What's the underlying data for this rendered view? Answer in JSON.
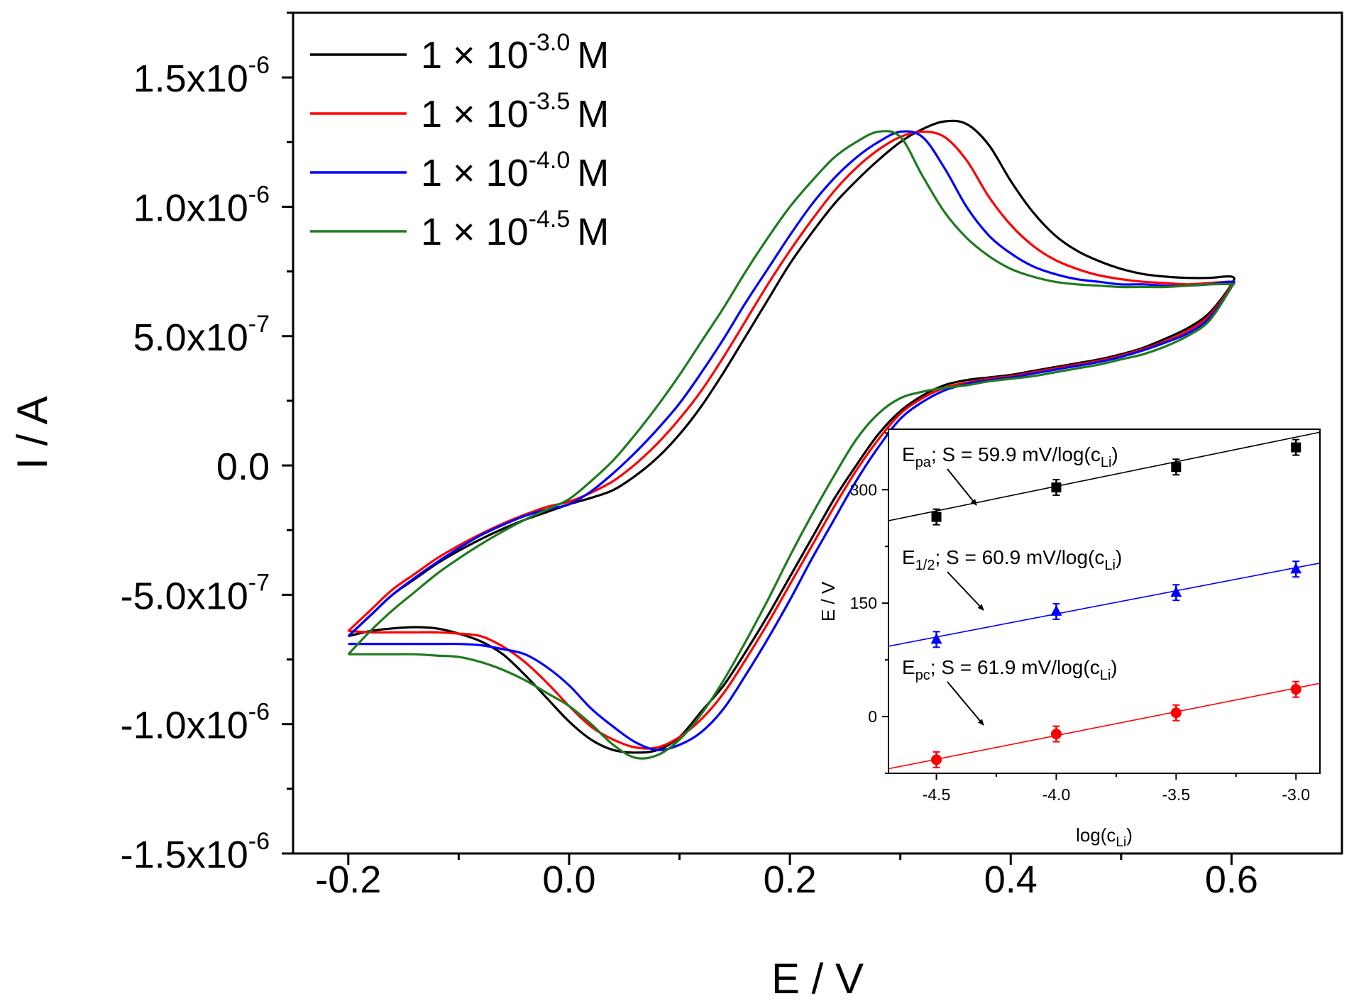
{
  "chart_data": [
    {
      "type": "line",
      "title": "",
      "xlabel": "E / V",
      "ylabel": "I / A",
      "xlim": [
        -0.25,
        0.7
      ],
      "ylim": [
        -1.5e-06,
        1.75e-06
      ],
      "x_ticks": [
        -0.2,
        0.0,
        0.2,
        0.4,
        0.6
      ],
      "x_tick_labels": [
        "-0.2",
        "0.0",
        "0.2",
        "0.4",
        "0.6"
      ],
      "y_ticks": [
        -1.5e-06,
        -1e-06,
        -5e-07,
        0.0,
        5e-07,
        1e-06,
        1.5e-06
      ],
      "y_tick_labels": [
        {
          "mantissa": "-1.5x10",
          "exp": "-6"
        },
        {
          "mantissa": "-1.0x10",
          "exp": "-6"
        },
        {
          "mantissa": "-5.0x10",
          "exp": "-7"
        },
        {
          "mantissa": "0.0",
          "exp": ""
        },
        {
          "mantissa": "5.0x10",
          "exp": "-7"
        },
        {
          "mantissa": "1.0x10",
          "exp": "-6"
        },
        {
          "mantissa": "1.5x10",
          "exp": "-6"
        }
      ],
      "legend_position": "top-left",
      "series": [
        {
          "name": "1 × 10-3.0 M",
          "label_base": "1 × 10",
          "label_exp": "-3.0",
          "label_unit": "M",
          "color": "#000000",
          "x": [
            -0.2,
            -0.18,
            -0.16,
            -0.14,
            -0.12,
            -0.1,
            -0.08,
            -0.06,
            -0.04,
            -0.02,
            0.0,
            0.02,
            0.04,
            0.06,
            0.08,
            0.1,
            0.12,
            0.14,
            0.16,
            0.18,
            0.2,
            0.22,
            0.24,
            0.26,
            0.28,
            0.3,
            0.32,
            0.34,
            0.36,
            0.38,
            0.4,
            0.42,
            0.44,
            0.46,
            0.48,
            0.5,
            0.52,
            0.54,
            0.56,
            0.58,
            0.6,
            0.6,
            0.58,
            0.56,
            0.54,
            0.52,
            0.5,
            0.48,
            0.46,
            0.44,
            0.42,
            0.4,
            0.38,
            0.36,
            0.34,
            0.32,
            0.3,
            0.28,
            0.26,
            0.24,
            0.22,
            0.2,
            0.18,
            0.16,
            0.14,
            0.12,
            0.1,
            0.08,
            0.06,
            0.04,
            0.02,
            0.0,
            -0.02,
            -0.04,
            -0.06,
            -0.08,
            -0.1,
            -0.12,
            -0.14,
            -0.16,
            -0.18,
            -0.2
          ],
          "y": [
            -6.6e-07,
            -5.8e-07,
            -5e-07,
            -4.4e-07,
            -3.8e-07,
            -3.3e-07,
            -2.85e-07,
            -2.45e-07,
            -2.1e-07,
            -1.8e-07,
            -1.5e-07,
            -1.25e-07,
            -9.5e-08,
            -4e-08,
            3e-08,
            1.2e-07,
            2.3e-07,
            3.6e-07,
            5e-07,
            6.4e-07,
            7.8e-07,
            9e-07,
            1.01e-06,
            1.1e-06,
            1.18e-06,
            1.25e-06,
            1.3e-06,
            1.33e-06,
            1.32e-06,
            1.24e-06,
            1.1e-06,
            9.8e-07,
            8.9e-07,
            8.3e-07,
            7.9e-07,
            7.6e-07,
            7.4e-07,
            7.3e-07,
            7.25e-07,
            7.25e-07,
            7.3e-07,
            7e-07,
            5.9e-07,
            5.3e-07,
            4.9e-07,
            4.55e-07,
            4.3e-07,
            4.1e-07,
            3.95e-07,
            3.8e-07,
            3.65e-07,
            3.5e-07,
            3.4e-07,
            3.3e-07,
            3.1e-07,
            2.7e-07,
            2.1e-07,
            1.2e-07,
            0.0,
            -1.3e-07,
            -2.8e-07,
            -4.3e-07,
            -5.8e-07,
            -7.2e-07,
            -8.5e-07,
            -9.5e-07,
            -1.05e-06,
            -1.1e-06,
            -1.11e-06,
            -1.1e-06,
            -1.06e-06,
            -9.9e-07,
            -9e-07,
            -8.1e-07,
            -7.3e-07,
            -6.8e-07,
            -6.5e-07,
            -6.3e-07,
            -6.25e-07,
            -6.3e-07,
            -6.4e-07,
            -6.6e-07
          ]
        },
        {
          "name": "1 × 10-3.5 M",
          "label_base": "1 × 10",
          "label_exp": "-3.5",
          "label_unit": "M",
          "color": "#ff0000",
          "x": [
            -0.2,
            -0.18,
            -0.16,
            -0.14,
            -0.12,
            -0.1,
            -0.08,
            -0.06,
            -0.04,
            -0.02,
            0.0,
            0.02,
            0.04,
            0.06,
            0.08,
            0.1,
            0.12,
            0.14,
            0.16,
            0.18,
            0.2,
            0.22,
            0.24,
            0.26,
            0.28,
            0.3,
            0.32,
            0.34,
            0.36,
            0.38,
            0.4,
            0.42,
            0.44,
            0.46,
            0.48,
            0.5,
            0.52,
            0.54,
            0.56,
            0.58,
            0.6,
            0.6,
            0.58,
            0.56,
            0.54,
            0.52,
            0.5,
            0.48,
            0.46,
            0.44,
            0.42,
            0.4,
            0.38,
            0.36,
            0.34,
            0.32,
            0.3,
            0.28,
            0.26,
            0.24,
            0.22,
            0.2,
            0.18,
            0.16,
            0.14,
            0.12,
            0.1,
            0.08,
            0.06,
            0.04,
            0.02,
            0.0,
            -0.02,
            -0.04,
            -0.06,
            -0.08,
            -0.1,
            -0.12,
            -0.14,
            -0.16,
            -0.18,
            -0.2
          ],
          "y": [
            -6.4e-07,
            -5.6e-07,
            -4.8e-07,
            -4.2e-07,
            -3.6e-07,
            -3.1e-07,
            -2.65e-07,
            -2.25e-07,
            -1.9e-07,
            -1.6e-07,
            -1.4e-07,
            -1.05e-07,
            -6e-08,
            5e-09,
            8.5e-08,
            1.8e-07,
            2.9e-07,
            4.2e-07,
            5.6e-07,
            7e-07,
            8.3e-07,
            9.5e-07,
            1.06e-06,
            1.15e-06,
            1.22e-06,
            1.27e-06,
            1.29e-06,
            1.27e-06,
            1.18e-06,
            1.04e-06,
            9.3e-07,
            8.5e-07,
            7.95e-07,
            7.6e-07,
            7.35e-07,
            7.2e-07,
            7.1e-07,
            7.05e-07,
            7e-07,
            7.05e-07,
            7.1e-07,
            6.95e-07,
            5.8e-07,
            5.2e-07,
            4.8e-07,
            4.5e-07,
            4.25e-07,
            4.05e-07,
            3.9e-07,
            3.75e-07,
            3.6e-07,
            3.45e-07,
            3.35e-07,
            3.2e-07,
            3e-07,
            2.6e-07,
            2e-07,
            1e-07,
            -2e-08,
            -1.6e-07,
            -3.1e-07,
            -4.6e-07,
            -6.1e-07,
            -7.5e-07,
            -8.8e-07,
            -9.8e-07,
            -1.05e-06,
            -1.09e-06,
            -1.09e-06,
            -1.06e-06,
            -1.01e-06,
            -9.3e-07,
            -8.4e-07,
            -7.6e-07,
            -7e-07,
            -6.6e-07,
            -6.5e-07,
            -6.45e-07,
            -6.45e-07,
            -6.45e-07,
            -6.45e-07,
            -6.4e-07
          ]
        },
        {
          "name": "1 × 10-4.0 M",
          "label_base": "1 × 10",
          "label_exp": "-4.0",
          "label_unit": "M",
          "color": "#0000ff",
          "x": [
            -0.2,
            -0.18,
            -0.16,
            -0.14,
            -0.12,
            -0.1,
            -0.08,
            -0.06,
            -0.04,
            -0.02,
            0.0,
            0.02,
            0.04,
            0.06,
            0.08,
            0.1,
            0.12,
            0.14,
            0.16,
            0.18,
            0.2,
            0.22,
            0.24,
            0.26,
            0.28,
            0.3,
            0.32,
            0.34,
            0.36,
            0.38,
            0.4,
            0.42,
            0.44,
            0.46,
            0.48,
            0.5,
            0.52,
            0.54,
            0.56,
            0.58,
            0.6,
            0.6,
            0.58,
            0.56,
            0.54,
            0.52,
            0.5,
            0.48,
            0.46,
            0.44,
            0.42,
            0.4,
            0.38,
            0.36,
            0.34,
            0.32,
            0.3,
            0.28,
            0.26,
            0.24,
            0.22,
            0.2,
            0.18,
            0.16,
            0.14,
            0.12,
            0.1,
            0.08,
            0.06,
            0.04,
            0.02,
            0.0,
            -0.02,
            -0.04,
            -0.06,
            -0.08,
            -0.1,
            -0.12,
            -0.14,
            -0.16,
            -0.18,
            -0.2
          ],
          "y": [
            -6.6e-07,
            -5.8e-07,
            -5e-07,
            -4.35e-07,
            -3.75e-07,
            -3.2e-07,
            -2.7e-07,
            -2.3e-07,
            -1.95e-07,
            -1.7e-07,
            -1.5e-07,
            -1e-07,
            -3e-08,
            5e-08,
            1.4e-07,
            2.4e-07,
            3.6e-07,
            4.9e-07,
            6.3e-07,
            7.6e-07,
            8.9e-07,
            1.01e-06,
            1.11e-06,
            1.19e-06,
            1.25e-06,
            1.29e-06,
            1.27e-06,
            1.15e-06,
            1e-06,
            8.9e-07,
            8.2e-07,
            7.7e-07,
            7.4e-07,
            7.2e-07,
            7.1e-07,
            7e-07,
            7e-07,
            6.95e-07,
            6.95e-07,
            7e-07,
            7.1e-07,
            6.9e-07,
            5.7e-07,
            5.1e-07,
            4.75e-07,
            4.45e-07,
            4.2e-07,
            4e-07,
            3.85e-07,
            3.7e-07,
            3.55e-07,
            3.4e-07,
            3.3e-07,
            3.15e-07,
            2.9e-07,
            2.45e-07,
            1.8e-07,
            7e-08,
            -6e-08,
            -2.1e-07,
            -3.6e-07,
            -5.2e-07,
            -6.7e-07,
            -8.1e-07,
            -9.4e-07,
            -1.03e-06,
            -1.08e-06,
            -1.1e-06,
            -1.07e-06,
            -1.01e-06,
            -9.4e-07,
            -8.5e-07,
            -7.8e-07,
            -7.3e-07,
            -7.1e-07,
            -6.95e-07,
            -6.9e-07,
            -6.9e-07,
            -6.9e-07,
            -6.9e-07,
            -6.9e-07,
            -6.9e-07
          ]
        },
        {
          "name": "1 × 10-4.5 M",
          "label_base": "1 × 10",
          "label_exp": "-4.5",
          "label_unit": "M",
          "color": "#1f7a1f",
          "x": [
            -0.2,
            -0.18,
            -0.16,
            -0.14,
            -0.12,
            -0.1,
            -0.08,
            -0.06,
            -0.04,
            -0.02,
            0.0,
            0.02,
            0.04,
            0.06,
            0.08,
            0.1,
            0.12,
            0.14,
            0.16,
            0.18,
            0.2,
            0.22,
            0.24,
            0.26,
            0.28,
            0.3,
            0.32,
            0.34,
            0.36,
            0.38,
            0.4,
            0.42,
            0.44,
            0.46,
            0.48,
            0.5,
            0.52,
            0.54,
            0.56,
            0.58,
            0.6,
            0.6,
            0.58,
            0.56,
            0.54,
            0.52,
            0.5,
            0.48,
            0.46,
            0.44,
            0.42,
            0.4,
            0.38,
            0.36,
            0.34,
            0.32,
            0.3,
            0.28,
            0.26,
            0.24,
            0.22,
            0.2,
            0.18,
            0.16,
            0.14,
            0.12,
            0.1,
            0.08,
            0.06,
            0.04,
            0.02,
            0.0,
            -0.02,
            -0.04,
            -0.06,
            -0.08,
            -0.1,
            -0.12,
            -0.14,
            -0.16,
            -0.18,
            -0.2
          ],
          "y": [
            -7.3e-07,
            -6.4e-07,
            -5.6e-07,
            -4.9e-07,
            -4.2e-07,
            -3.6e-07,
            -3.05e-07,
            -2.55e-07,
            -2.1e-07,
            -1.7e-07,
            -1.3e-07,
            -6e-08,
            2e-08,
            1.2e-07,
            2.3e-07,
            3.5e-07,
            4.8e-07,
            6.1e-07,
            7.5e-07,
            8.8e-07,
            1e-06,
            1.1e-06,
            1.19e-06,
            1.25e-06,
            1.29e-06,
            1.27e-06,
            1.12e-06,
            9.8e-07,
            8.8e-07,
            8.1e-07,
            7.6e-07,
            7.3e-07,
            7.1e-07,
            7e-07,
            6.95e-07,
            6.9e-07,
            6.9e-07,
            6.9e-07,
            6.95e-07,
            7e-07,
            7e-07,
            6.9e-07,
            5.6e-07,
            5e-07,
            4.6e-07,
            4.3e-07,
            4.1e-07,
            3.9e-07,
            3.75e-07,
            3.6e-07,
            3.45e-07,
            3.35e-07,
            3.25e-07,
            3.1e-07,
            3e-07,
            2.85e-07,
            2.6e-07,
            2e-07,
            1e-07,
            -4e-08,
            -1.9e-07,
            -3.5e-07,
            -5.2e-07,
            -6.8e-07,
            -8.3e-07,
            -9.6e-07,
            -1.06e-06,
            -1.12e-06,
            -1.13e-06,
            -1.08e-06,
            -1e-06,
            -9.3e-07,
            -8.8e-07,
            -8.3e-07,
            -7.9e-07,
            -7.6e-07,
            -7.4e-07,
            -7.35e-07,
            -7.3e-07,
            -7.3e-07,
            -7.3e-07,
            -7.3e-07
          ]
        }
      ]
    },
    {
      "type": "scatter",
      "title": "",
      "xlabel_base": "log(c",
      "xlabel_sub": "Li",
      "xlabel_close": ")",
      "ylabel": "E / V",
      "xlim": [
        -4.7,
        -2.9
      ],
      "ylim": [
        -75,
        380
      ],
      "x_ticks": [
        -4.5,
        -4.0,
        -3.5,
        -3.0
      ],
      "x_tick_labels": [
        "-4.5",
        "-4.0",
        "-3.5",
        "-3.0"
      ],
      "y_ticks": [
        0,
        150,
        300
      ],
      "y_tick_labels": [
        "0",
        "150",
        "300"
      ],
      "series": [
        {
          "name": "Epa",
          "marker": "square",
          "color": "#000000",
          "label_E": "E",
          "label_sub": "pa",
          "label_mid": "; S = 59.9 mV/log(c",
          "label_sub2": "Li",
          "label_end": ")",
          "slope": 59.9,
          "x": [
            -4.5,
            -4.0,
            -3.5,
            -3.0
          ],
          "y": [
            264,
            303,
            330,
            356
          ],
          "fit_y": [
            259,
            376
          ]
        },
        {
          "name": "E1/2",
          "marker": "triangle",
          "color": "#0000ff",
          "label_E": "E",
          "label_sub": "1/2",
          "label_mid": "; S = 60.9 mV/log(c",
          "label_sub2": "Li",
          "label_end": ")",
          "slope": 60.9,
          "x": [
            -4.5,
            -4.0,
            -3.5,
            -3.0
          ],
          "y": [
            102,
            139,
            164,
            195
          ],
          "fit_y": [
            93,
            203
          ]
        },
        {
          "name": "Epc",
          "marker": "circle",
          "color": "#ff0000",
          "label_E": "E",
          "label_sub": "pc",
          "label_mid": "; S = 61.9 mV/log(c",
          "label_sub2": "Li",
          "label_end": ")",
          "slope": 61.9,
          "x": [
            -4.5,
            -4.0,
            -3.5,
            -3.0
          ],
          "y": [
            -57,
            -23,
            5,
            36
          ],
          "fit_y": [
            -69,
            44
          ]
        }
      ]
    }
  ]
}
